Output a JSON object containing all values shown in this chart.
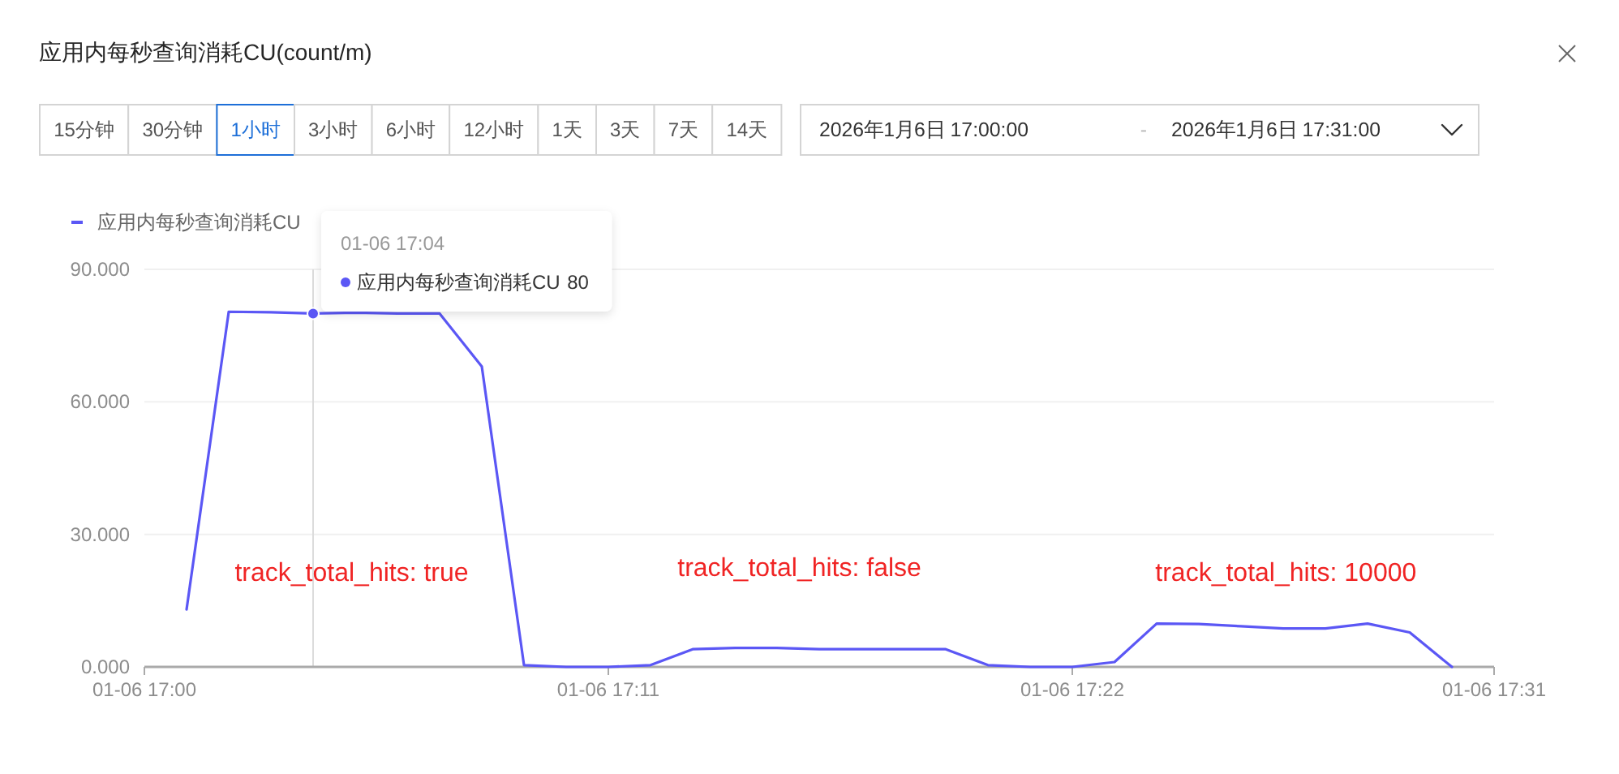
{
  "chart_data": {
    "type": "line",
    "title": "应用内每秒查询消耗CU(count/m)",
    "categories": [
      "01-06 17:00",
      null,
      null,
      null,
      null,
      null,
      null,
      null,
      null,
      null,
      null,
      "01-06 17:11",
      null,
      null,
      null,
      null,
      null,
      null,
      null,
      null,
      null,
      null,
      "01-06 17:22",
      null,
      null,
      null,
      null,
      null,
      null,
      null,
      null,
      null,
      "01-06 17:31"
    ],
    "series": [
      {
        "name": "应用内每秒查询消耗CU",
        "color": "#5b57f5",
        "values": [
          null,
          13,
          80.4,
          80.3,
          80,
          80.2,
          80,
          80,
          68,
          0.4,
          0,
          0,
          0.4,
          4,
          4.3,
          4.3,
          4,
          4,
          4,
          4,
          0.4,
          0,
          0,
          1.1,
          9.8,
          9.7,
          9.2,
          8.7,
          8.7,
          9.8,
          7.8,
          0,
          null
        ]
      }
    ],
    "ylim": [
      0,
      90
    ],
    "yticks": [
      {
        "value": 0,
        "label": "0.000"
      },
      {
        "value": 30,
        "label": "30.000"
      },
      {
        "value": 60,
        "label": "60.000"
      },
      {
        "value": 90,
        "label": "90.000"
      }
    ],
    "grid": "y",
    "legend": "top left",
    "annotations": [
      "15分钟",
      "30分钟",
      "1小时",
      "3小时",
      "6小时",
      "12小时",
      "1天",
      "3天",
      "7天",
      "14天",
      "2026年1月6日 17:00:00",
      "-",
      "2026年1月6日 17:31:00",
      "track_total_hits: true",
      "track_total_hits: false",
      "track_total_hits: 10000",
      "01-06 17:04\n应用内每秒查询消耗CU 80"
    ]
  }
}
